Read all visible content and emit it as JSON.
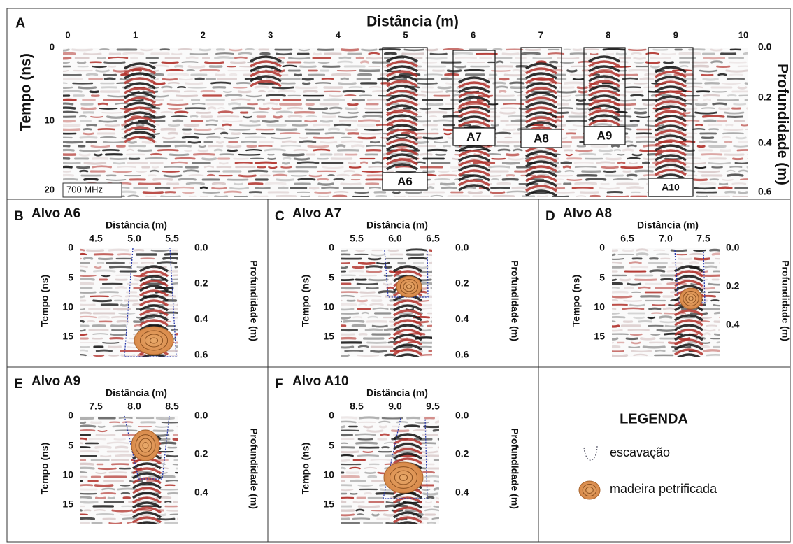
{
  "panels": [
    {
      "letter": "A",
      "x_label": "Distância (m)",
      "y_label": "Tempo (ns)",
      "y2_label": "Profundidade (m)",
      "x_ticks": [
        "0",
        "1",
        "2",
        "3",
        "4",
        "5",
        "6",
        "7",
        "8",
        "9",
        "10"
      ],
      "y_ticks": [
        "0",
        "10",
        "20"
      ],
      "y2_ticks": [
        "0.0",
        "0.2",
        "0.4",
        "0.6"
      ],
      "frequency": "700 MHz",
      "targets": [
        "A6",
        "A7",
        "A8",
        "A9",
        "A10"
      ]
    },
    {
      "letter": "B",
      "title": "Alvo A6",
      "x_label": "Distância (m)",
      "y_label": "Tempo (ns)",
      "y2_label": "Profundidade (m)",
      "x_ticks": [
        "4.5",
        "5.0",
        "5.5"
      ],
      "y_ticks": [
        "0",
        "5",
        "10",
        "15"
      ],
      "y2_ticks": [
        "0.0",
        "0.2",
        "0.4",
        "0.6"
      ]
    },
    {
      "letter": "C",
      "title": "Alvo A7",
      "x_label": "Distância (m)",
      "y_label": "Tempo (ns)",
      "y2_label": "Profundidade (m)",
      "x_ticks": [
        "5.5",
        "6.0",
        "6.5"
      ],
      "y_ticks": [
        "0",
        "5",
        "10",
        "15"
      ],
      "y2_ticks": [
        "0.0",
        "0.2",
        "0.4",
        "0.6"
      ]
    },
    {
      "letter": "D",
      "title": "Alvo A8",
      "x_label": "Distância (m)",
      "y_label": "Tempo (ns)",
      "y2_label": "Profundidade (m)",
      "x_ticks": [
        "6.5",
        "7.0",
        "7.5"
      ],
      "y_ticks": [
        "0",
        "5",
        "10",
        "15"
      ],
      "y2_ticks": [
        "0.0",
        "0.2",
        "0.4"
      ]
    },
    {
      "letter": "E",
      "title": "Alvo A9",
      "x_label": "Distância (m)",
      "y_label": "Tempo (ns)",
      "y2_label": "Profundidade (m)",
      "x_ticks": [
        "7.5",
        "8.0",
        "8.5"
      ],
      "y_ticks": [
        "0",
        "5",
        "10",
        "15"
      ],
      "y2_ticks": [
        "0.0",
        "0.2",
        "0.4"
      ]
    },
    {
      "letter": "F",
      "title": "Alvo A10",
      "x_label": "Distância (m)",
      "y_label": "Tempo (ns)",
      "y2_label": "Profundidade (m)",
      "x_ticks": [
        "8.5",
        "9.0",
        "9.5"
      ],
      "y_ticks": [
        "0",
        "5",
        "10",
        "15"
      ],
      "y2_ticks": [
        "0.0",
        "0.2",
        "0.4"
      ]
    }
  ],
  "legend": {
    "title": "LEGENDA",
    "items": [
      "escavação",
      "madeira petrificada"
    ]
  }
}
